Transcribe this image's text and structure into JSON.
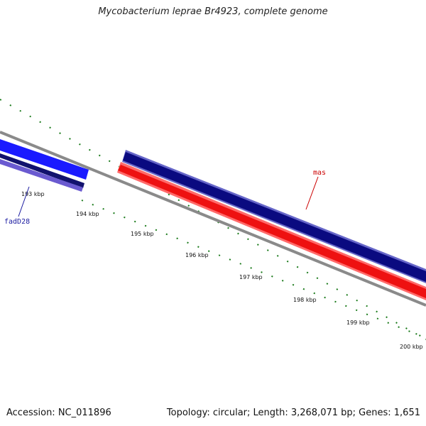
{
  "title": "Mycobacterium leprae Br4923, complete genome",
  "footer": {
    "accession": "Accession: NC_011896",
    "summary": "Topology: circular; Length: 3,268,071 bp; Genes: 1,651"
  },
  "colors": {
    "background": "#ffffff",
    "backbone": "#8a8a8a",
    "tick": "#1a7a1a",
    "forward_strand": "#0a0a80",
    "reverse_strand": "#ee1111",
    "fadD28_main": "#1a1aff",
    "fadD28_dark": "#12126e",
    "fadD28_light": "#6a5ad0",
    "label_mas": "#cc0000",
    "label_fadD28": "#1a1aa0"
  },
  "ticks": [
    {
      "label": "193 kbp"
    },
    {
      "label": "194 kbp"
    },
    {
      "label": "195 kbp"
    },
    {
      "label": "196 kbp"
    },
    {
      "label": "197 kbp"
    },
    {
      "label": "198 kbp"
    },
    {
      "label": "199 kbp"
    },
    {
      "label": "200 kbp"
    }
  ],
  "genes": [
    {
      "name": "mas",
      "strand": "forward",
      "color_key": "forward_strand"
    },
    {
      "name": "mas",
      "strand": "reverse",
      "color_key": "reverse_strand"
    },
    {
      "name": "fadD28",
      "strand": "forward",
      "color_key": "fadD28_main"
    }
  ],
  "gene_labels": [
    {
      "text": "mas",
      "color_key": "label_mas"
    },
    {
      "text": "fadD28",
      "color_key": "label_fadD28"
    }
  ]
}
